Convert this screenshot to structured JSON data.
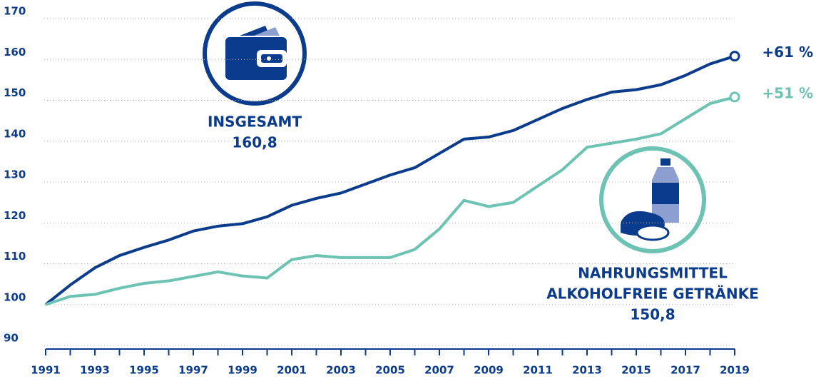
{
  "chart_data": {
    "type": "line",
    "x": [
      1991,
      1992,
      1993,
      1994,
      1995,
      1996,
      1997,
      1998,
      1999,
      2000,
      2001,
      2002,
      2003,
      2004,
      2005,
      2006,
      2007,
      2008,
      2009,
      2010,
      2011,
      2012,
      2013,
      2014,
      2015,
      2016,
      2017,
      2018,
      2019
    ],
    "xlim": [
      1991,
      2019
    ],
    "xticks": [
      1991,
      1993,
      1995,
      1997,
      1999,
      2001,
      2003,
      2005,
      2007,
      2009,
      2011,
      2013,
      2015,
      2017,
      2019
    ],
    "ylim": [
      90,
      170
    ],
    "yticks": [
      90,
      100,
      110,
      120,
      130,
      140,
      150,
      160,
      170
    ],
    "grid": true,
    "series": [
      {
        "name": "INSGESAMT",
        "color": "#0b3b8c",
        "end_label": "160,8",
        "change_label": "+61 %",
        "values": [
          100,
          104.8,
          109,
          112,
          114,
          115.8,
          118,
          119.2,
          119.8,
          121.5,
          124.3,
          126,
          127.3,
          129.5,
          131.7,
          133.5,
          137,
          140.5,
          141,
          142.6,
          145.3,
          148,
          150.2,
          152,
          152.6,
          153.8,
          156.1,
          158.9,
          160.8
        ]
      },
      {
        "name": [
          "NAHRUNGSMITTEL",
          "ALKOHOLFREIE GETRÄNKE"
        ],
        "color": "#6cc3b4",
        "end_label": "150,8",
        "change_label": "+51 %",
        "values": [
          100,
          102,
          102.5,
          104,
          105.2,
          105.8,
          106.9,
          108,
          107,
          106.5,
          111,
          112,
          111.5,
          111.5,
          111.5,
          113.5,
          118.5,
          125.5,
          124,
          125,
          129,
          133,
          138.5,
          139.5,
          140.5,
          141.8,
          145.5,
          149.2,
          150.8
        ]
      }
    ]
  }
}
